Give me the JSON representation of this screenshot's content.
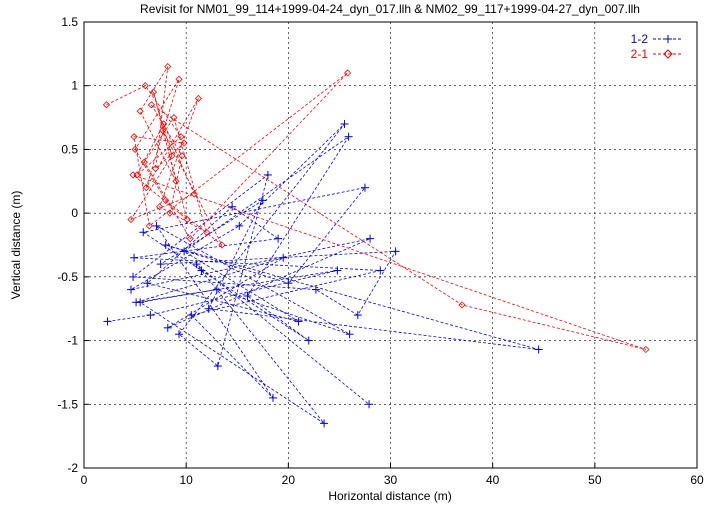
{
  "chart_data": {
    "type": "line",
    "title": "Revisit for NM01_99_114+1999-04-24_dyn_017.llh & NM02_99_117+1999-04-27_dyn_007.llh",
    "xlabel": "Horizontal distance (m)",
    "ylabel": "Vertical distance (m)",
    "xlim": [
      0,
      60
    ],
    "ylim": [
      -2,
      1.5
    ],
    "xticks": [
      "0",
      "10",
      "20",
      "30",
      "40",
      "50",
      "60"
    ],
    "yticks": [
      "-2",
      "-1.5",
      "-1",
      "-0.5",
      "0",
      "0.5",
      "1",
      "1.5"
    ],
    "xtick_values": [
      0,
      10,
      20,
      30,
      40,
      50,
      60
    ],
    "ytick_values": [
      -2,
      -1.5,
      -1,
      -0.5,
      0,
      0.5,
      1,
      1.5
    ],
    "grid": true,
    "legend_position": "top-right",
    "series": [
      {
        "name": "1-2",
        "color": "#0000ff",
        "marker": "plus",
        "line_style": "dashed",
        "x": [
          2.3,
          6.5,
          24.8,
          5.1,
          19.5,
          8.2,
          28.0,
          4.6,
          15.2,
          25.5,
          9.3,
          13.1,
          18.0,
          4.8,
          22.7,
          26.8,
          30.5,
          7.5,
          17.5,
          12.2,
          44.5,
          8.0,
          20.0,
          27.5,
          5.8,
          11.5,
          22.0,
          16.0,
          25.9,
          9.8,
          21.0,
          6.2,
          14.5,
          19.0,
          4.9,
          29.0,
          10.5,
          18.5,
          7.1,
          26.0,
          13.0,
          5.5,
          23.5,
          11.0,
          27.9
        ],
        "y": [
          -0.85,
          -0.8,
          -0.45,
          -0.7,
          -0.35,
          -0.9,
          -0.2,
          -0.6,
          -0.1,
          0.7,
          -0.95,
          -1.2,
          0.3,
          -0.5,
          -0.6,
          -0.8,
          -0.3,
          -0.4,
          0.1,
          -0.75,
          -1.07,
          -0.25,
          -0.55,
          0.2,
          -0.15,
          -0.45,
          -1.0,
          -0.65,
          0.6,
          -0.3,
          -0.85,
          -0.55,
          0.05,
          -0.2,
          -0.35,
          -0.45,
          -0.8,
          -1.45,
          -0.1,
          -0.95,
          -0.6,
          -0.7,
          -1.65,
          -0.4,
          -1.5
        ]
      },
      {
        "name": "2-1",
        "color": "#ff0000",
        "marker": "diamond",
        "line_style": "dashed",
        "x": [
          2.2,
          6.0,
          9.5,
          5.2,
          7.8,
          10.8,
          4.6,
          8.6,
          6.8,
          9.0,
          5.5,
          8.2,
          7.0,
          9.8,
          4.9,
          6.4,
          25.8,
          10.4,
          5.9,
          8.8,
          12.0,
          7.4,
          11.2,
          6.1,
          9.3,
          5.0,
          8.0,
          13.5,
          7.7,
          10.1,
          4.8,
          55.0,
          37.0,
          6.6,
          9.6,
          8.4
        ],
        "y": [
          0.85,
          1.0,
          0.6,
          0.3,
          0.7,
          0.15,
          -0.05,
          0.45,
          0.95,
          0.25,
          0.8,
          1.15,
          0.35,
          0.55,
          0.6,
          -0.1,
          1.1,
          -0.2,
          0.4,
          0.75,
          -0.15,
          0.05,
          0.9,
          0.2,
          1.05,
          0.5,
          0.1,
          -0.25,
          0.65,
          -0.05,
          0.3,
          -1.07,
          -0.72,
          0.85,
          0.45,
          0.0
        ]
      }
    ]
  }
}
